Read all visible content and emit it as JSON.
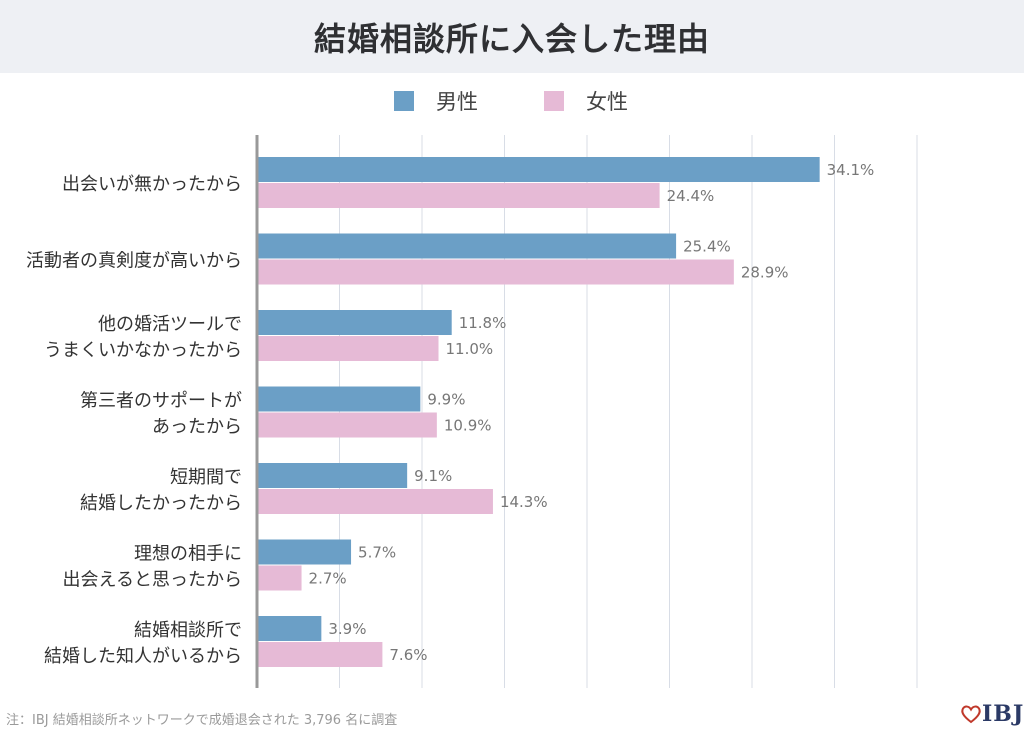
{
  "title": "結婚相談所に入会した理由",
  "legend": [
    {
      "label": "男性",
      "color": "#6b9fc6"
    },
    {
      "label": "女性",
      "color": "#e6bad6"
    }
  ],
  "chart_data": {
    "type": "bar",
    "orientation": "horizontal",
    "title": "結婚相談所に入会した理由",
    "categories": [
      [
        "出会いが無かったから"
      ],
      [
        "活動者の真剣度が高いから"
      ],
      [
        "他の婚活ツールで",
        "うまくいかなかったから"
      ],
      [
        "第三者のサポートが",
        "あったから"
      ],
      [
        "短期間で",
        "結婚したかったから"
      ],
      [
        "理想の相手に",
        "出会えると思ったから"
      ],
      [
        "結婚相談所で",
        "結婚した知人がいるから"
      ]
    ],
    "series": [
      {
        "name": "男性",
        "color": "#6b9fc6",
        "values": [
          34.1,
          25.4,
          11.8,
          9.9,
          9.1,
          5.7,
          3.9
        ]
      },
      {
        "name": "女性",
        "color": "#e6bad6",
        "values": [
          24.4,
          28.9,
          11.0,
          10.9,
          14.3,
          2.7,
          7.6
        ]
      }
    ],
    "value_suffix": "%",
    "xlim": [
      0,
      40
    ],
    "grid": true,
    "legend_position": "top"
  },
  "footnote": "注：IBJ 結婚相談所ネットワークで成婚退会された 3,796 名に調査",
  "logo": {
    "text": "IBJ",
    "icon": "heart-icon",
    "color": "#c0392b"
  }
}
